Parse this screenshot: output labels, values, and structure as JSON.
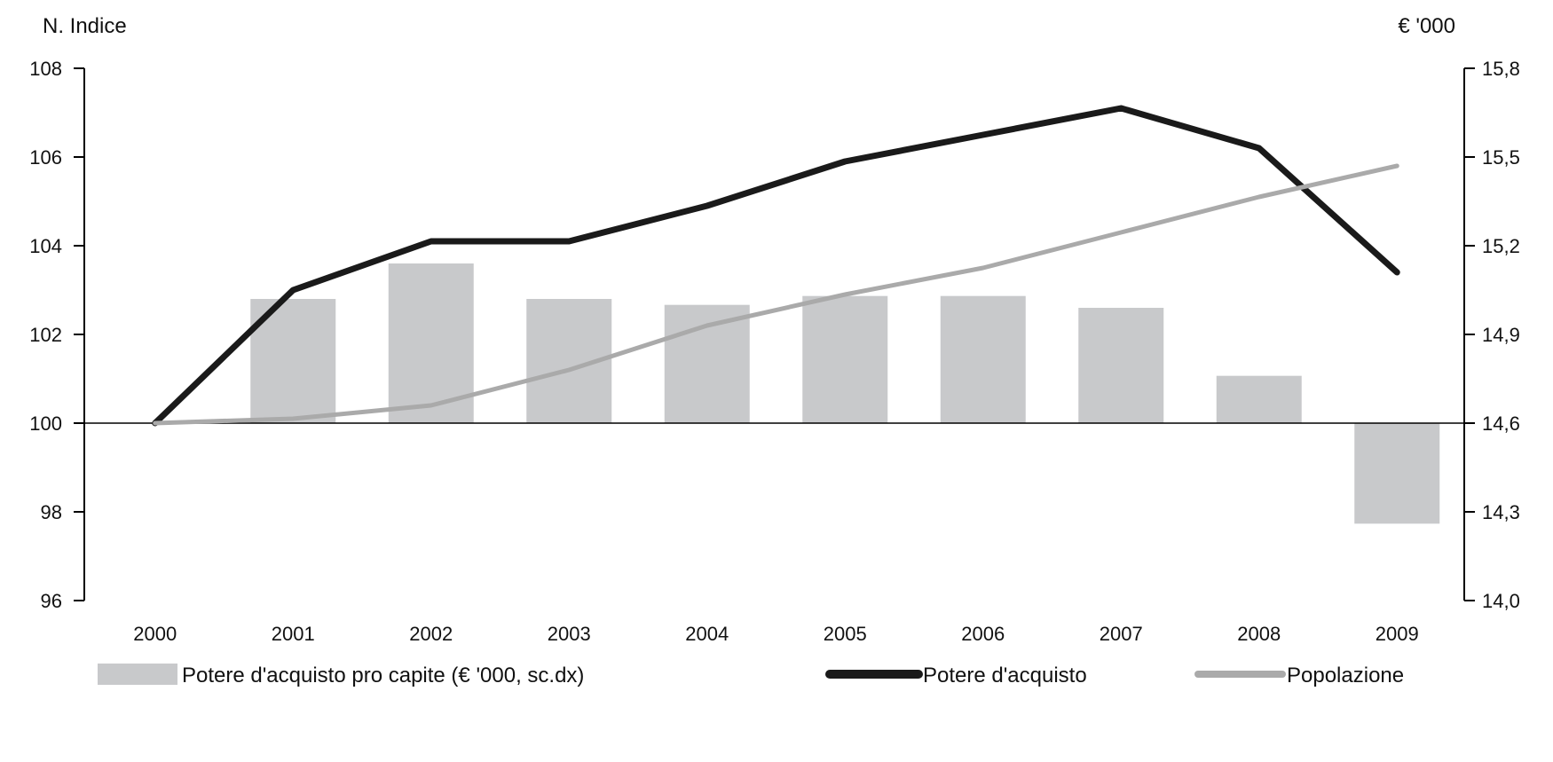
{
  "chart_data": {
    "type": "bar+line",
    "categories": [
      "2000",
      "2001",
      "2002",
      "2003",
      "2004",
      "2005",
      "2006",
      "2007",
      "2008",
      "2009"
    ],
    "left_axis": {
      "label": "N. Indice",
      "min": 96,
      "max": 108,
      "ticks": [
        "96",
        "98",
        "100",
        "102",
        "104",
        "106",
        "108"
      ],
      "tick_values": [
        96,
        98,
        100,
        102,
        104,
        106,
        108
      ]
    },
    "right_axis": {
      "label": "€ '000",
      "min": 14.0,
      "max": 15.8,
      "ticks": [
        "14,0",
        "14,3",
        "14,6",
        "14,9",
        "15,2",
        "15,5",
        "15,8"
      ],
      "tick_values": [
        14.0,
        14.3,
        14.6,
        14.9,
        15.2,
        15.5,
        15.8
      ]
    },
    "baseline_left": 100,
    "series": [
      {
        "name": "Potere d'acquisto pro capite (€ '000, sc.dx)",
        "kind": "bar",
        "axis": "right",
        "color": "#c8c9cb",
        "values": [
          14.6,
          15.02,
          15.14,
          15.02,
          15.0,
          15.03,
          15.03,
          14.99,
          14.76,
          14.26
        ]
      },
      {
        "name": "Potere d'acquisto",
        "kind": "line",
        "axis": "left",
        "color": "#1a1a1a",
        "values": [
          100.0,
          103.0,
          104.1,
          104.1,
          104.9,
          105.9,
          106.5,
          107.1,
          106.2,
          103.4
        ]
      },
      {
        "name": "Popolazione",
        "kind": "line",
        "axis": "left",
        "color": "#aaaaaa",
        "values": [
          100.0,
          100.1,
          100.4,
          101.2,
          102.2,
          102.9,
          103.5,
          104.3,
          105.1,
          105.8
        ]
      }
    ],
    "grid": false,
    "legend_position": "bottom"
  }
}
